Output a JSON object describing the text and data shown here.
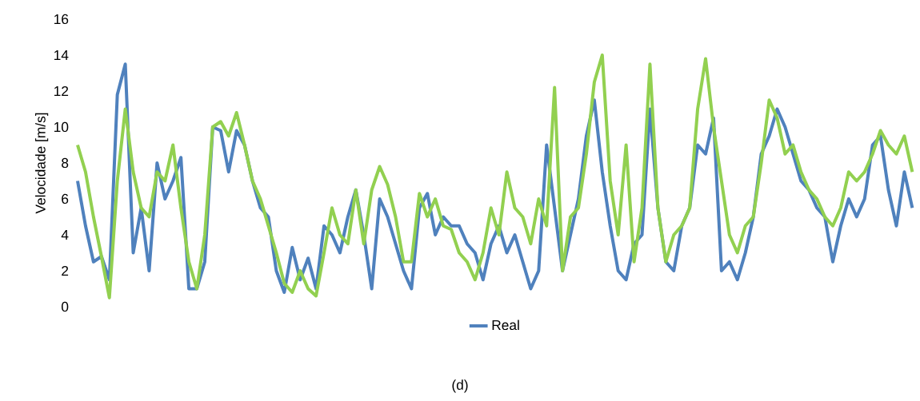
{
  "chart_data": {
    "type": "line",
    "ylabel": "Velocidade [m/s]",
    "annotations": [
      "(d)"
    ],
    "categories": [
      null,
      null,
      null,
      null,
      null,
      null,
      null,
      null,
      null,
      null,
      null,
      null,
      null,
      null,
      null,
      null,
      null,
      null,
      null,
      null,
      null,
      null,
      null,
      null,
      null,
      null,
      null,
      null,
      null,
      null,
      null,
      null,
      null,
      null,
      null,
      null,
      null,
      null,
      null,
      null,
      null,
      null,
      null,
      null,
      null,
      null,
      null,
      null,
      null,
      null,
      null,
      null,
      null,
      null,
      null,
      null,
      null,
      null,
      null,
      null,
      null,
      null,
      null,
      null,
      null,
      null,
      null,
      null,
      null,
      null,
      null,
      null,
      null,
      null,
      null,
      null,
      null,
      null,
      null,
      null,
      null,
      null,
      null,
      null,
      null,
      null,
      null,
      null,
      null,
      null,
      null,
      null,
      null,
      null,
      null,
      null,
      null,
      null,
      null,
      null,
      null,
      null,
      null,
      null,
      null,
      null
    ],
    "series": [
      {
        "name": "Real",
        "color": "#4f81bd",
        "values": [
          7.0,
          4.5,
          2.5,
          2.8,
          1.5,
          11.8,
          13.5,
          3.0,
          5.5,
          2.0,
          8.0,
          6.0,
          7.0,
          8.3,
          1.0,
          1.0,
          2.5,
          10.0,
          9.8,
          7.5,
          9.8,
          9.0,
          7.0,
          5.5,
          5.0,
          2.0,
          0.8,
          3.3,
          1.5,
          2.7,
          1.0,
          4.5,
          4.0,
          3.0,
          5.0,
          6.5,
          4.0,
          1.0,
          6.0,
          5.0,
          3.5,
          2.0,
          1.0,
          5.5,
          6.3,
          4.0,
          5.0,
          4.5,
          4.5,
          3.5,
          3.0,
          1.5,
          3.5,
          4.5,
          3.0,
          4.0,
          2.5,
          1.0,
          2.0,
          9.0,
          5.5,
          2.0,
          4.0,
          6.0,
          9.5,
          11.5,
          7.5,
          4.5,
          2.0,
          1.5,
          3.5,
          4.0,
          11.0,
          5.5,
          2.5,
          2.0,
          4.5,
          5.5,
          9.0,
          8.5,
          10.5,
          2.0,
          2.5,
          1.5,
          3.0,
          5.0,
          8.5,
          9.5,
          11.0,
          10.0,
          8.5,
          7.0,
          6.5,
          5.5,
          5.0,
          2.5,
          4.5,
          6.0,
          5.0,
          6.0,
          9.0,
          9.5,
          6.5,
          4.5,
          7.5,
          5.5
        ]
      },
      {
        "color": "#92d050",
        "values": [
          9.0,
          7.5,
          5.0,
          2.8,
          0.5,
          7.0,
          11.0,
          7.5,
          5.5,
          5.0,
          7.5,
          7.0,
          9.0,
          5.5,
          2.5,
          1.0,
          4.0,
          10.0,
          10.3,
          9.5,
          10.8,
          9.0,
          7.0,
          6.0,
          4.5,
          3.0,
          1.3,
          0.8,
          2.0,
          1.0,
          0.6,
          3.0,
          5.5,
          4.0,
          3.5,
          6.5,
          3.5,
          6.5,
          7.8,
          6.8,
          5.0,
          2.5,
          2.5,
          6.3,
          5.0,
          6.0,
          4.5,
          4.3,
          3.0,
          2.5,
          1.5,
          3.0,
          5.5,
          4.0,
          7.5,
          5.5,
          5.0,
          3.5,
          6.0,
          4.5,
          12.2,
          2.0,
          5.0,
          5.5,
          8.5,
          12.5,
          14.0,
          7.0,
          4.0,
          9.0,
          2.5,
          5.5,
          13.5,
          5.5,
          2.5,
          4.0,
          4.5,
          5.5,
          11.0,
          13.8,
          10.0,
          7.0,
          4.0,
          3.0,
          4.5,
          5.0,
          8.0,
          11.5,
          10.5,
          8.5,
          9.0,
          7.5,
          6.5,
          6.0,
          5.0,
          4.5,
          5.5,
          7.5,
          7.0,
          7.5,
          8.5,
          9.8,
          9.0,
          8.5,
          9.5,
          7.5
        ]
      }
    ],
    "ylim": [
      0,
      16
    ],
    "yticks": [
      0,
      2,
      4,
      6,
      8,
      10,
      12,
      14,
      16
    ],
    "grid": false,
    "legend": "bottom"
  }
}
